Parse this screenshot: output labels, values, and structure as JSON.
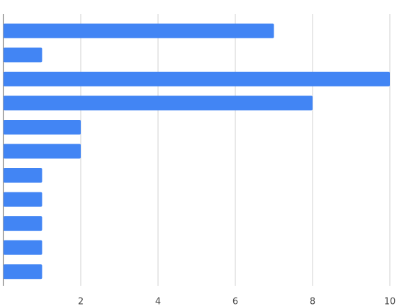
{
  "chart_data": {
    "type": "bar",
    "orientation": "horizontal",
    "categories": [
      null,
      null,
      null,
      null,
      null,
      null,
      null,
      null,
      null,
      null,
      null
    ],
    "values": [
      7,
      1,
      10,
      8,
      2,
      2,
      1,
      1,
      1,
      1,
      1
    ],
    "color": "#4285f4",
    "xlim": [
      0,
      10
    ],
    "xticks": [
      2,
      4,
      6,
      8,
      10
    ],
    "grid": true
  }
}
